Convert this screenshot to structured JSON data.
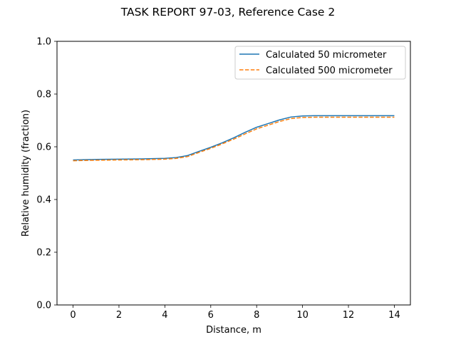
{
  "chart_data": {
    "type": "line",
    "title": "TASK REPORT 97-03, Reference Case 2",
    "xlabel": "Distance, m",
    "ylabel": "Relative humidity (fraction)",
    "xlim": [
      -0.7,
      14.7
    ],
    "ylim": [
      0.0,
      1.0
    ],
    "xticks": [
      0,
      2,
      4,
      6,
      8,
      10,
      12,
      14
    ],
    "yticks": [
      0.0,
      0.2,
      0.4,
      0.6,
      0.8,
      1.0
    ],
    "xtick_labels": [
      "0",
      "2",
      "4",
      "6",
      "8",
      "10",
      "12",
      "14"
    ],
    "ytick_labels": [
      "0.0",
      "0.2",
      "0.4",
      "0.6",
      "0.8",
      "1.0"
    ],
    "grid": false,
    "legend_position": "top-right",
    "series": [
      {
        "name": "Calculated 50 micrometer",
        "color": "#1f77b4",
        "style": "solid",
        "x": [
          0,
          1,
          2,
          3,
          4,
          4.5,
          5,
          5.5,
          6,
          6.5,
          7,
          7.5,
          8,
          8.5,
          9,
          9.5,
          10,
          10.5,
          11,
          12,
          13,
          14
        ],
        "y": [
          0.55,
          0.552,
          0.553,
          0.554,
          0.556,
          0.559,
          0.567,
          0.583,
          0.598,
          0.615,
          0.634,
          0.655,
          0.674,
          0.688,
          0.702,
          0.713,
          0.717,
          0.718,
          0.718,
          0.718,
          0.718,
          0.718
        ]
      },
      {
        "name": "Calculated 500 micrometer",
        "color": "#ff7f0e",
        "style": "dashed",
        "x": [
          0,
          1,
          2,
          3,
          4,
          4.5,
          5,
          5.5,
          6,
          6.5,
          7,
          7.5,
          8,
          8.5,
          9,
          9.5,
          10,
          10.5,
          11,
          12,
          13,
          14
        ],
        "y": [
          0.547,
          0.549,
          0.55,
          0.551,
          0.553,
          0.556,
          0.563,
          0.579,
          0.594,
          0.611,
          0.629,
          0.649,
          0.668,
          0.682,
          0.696,
          0.707,
          0.711,
          0.712,
          0.712,
          0.712,
          0.712,
          0.712
        ]
      }
    ]
  }
}
